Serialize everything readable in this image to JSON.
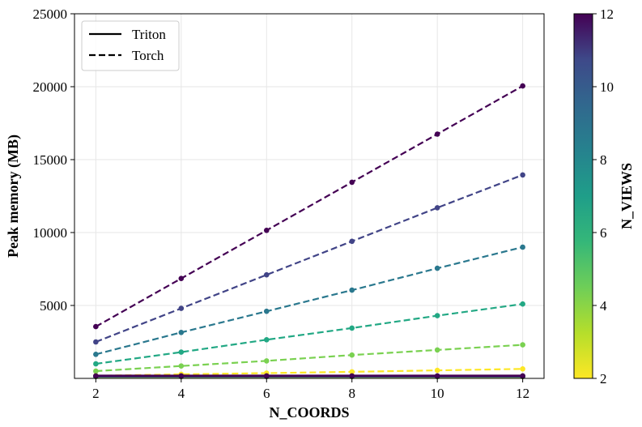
{
  "chart_data": {
    "type": "line",
    "title": "",
    "xlabel": "N_COORDS",
    "ylabel": "Peak memory (MB)",
    "x": [
      2,
      4,
      6,
      8,
      10,
      12
    ],
    "xlim": [
      1.5,
      12.5
    ],
    "ylim": [
      0,
      25000
    ],
    "xticks": [
      "2",
      "4",
      "6",
      "8",
      "10",
      "12"
    ],
    "yticks": [
      "5000",
      "10000",
      "15000",
      "20000",
      "25000"
    ],
    "grid": true,
    "legend": {
      "placement": "top-left",
      "entries": [
        {
          "label": "Triton",
          "style": "solid"
        },
        {
          "label": "Torch",
          "style": "dashed"
        }
      ]
    },
    "colorbar": {
      "label": "N_VIEWS",
      "range": [
        2,
        12
      ],
      "ticks": [
        "2",
        "4",
        "6",
        "8",
        "10",
        "12"
      ],
      "colormap": "viridis"
    },
    "series": [
      {
        "n_views": 12,
        "color": "#440154",
        "style": "dashed",
        "values": [
          3550,
          6850,
          10150,
          13450,
          16750,
          20050
        ]
      },
      {
        "n_views": 10,
        "color": "#414487",
        "style": "dashed",
        "values": [
          2500,
          4800,
          7100,
          9400,
          11700,
          13950
        ]
      },
      {
        "n_views": 8,
        "color": "#2a788e",
        "style": "dashed",
        "values": [
          1650,
          3150,
          4600,
          6050,
          7550,
          9000
        ]
      },
      {
        "n_views": 6,
        "color": "#22a884",
        "style": "dashed",
        "values": [
          1000,
          1800,
          2650,
          3450,
          4300,
          5100
        ]
      },
      {
        "n_views": 4,
        "color": "#7ad151",
        "style": "dashed",
        "values": [
          500,
          850,
          1200,
          1600,
          1950,
          2300
        ]
      },
      {
        "n_views": 2,
        "color": "#fde725",
        "style": "dashed",
        "values": [
          180,
          280,
          360,
          450,
          550,
          650
        ]
      },
      {
        "n_views": 2,
        "color": "#fde725",
        "style": "solid",
        "values": [
          120,
          120,
          120,
          120,
          120,
          120
        ]
      },
      {
        "n_views": 4,
        "color": "#7ad151",
        "style": "solid",
        "values": [
          130,
          130,
          130,
          130,
          130,
          130
        ]
      },
      {
        "n_views": 6,
        "color": "#22a884",
        "style": "solid",
        "values": [
          140,
          140,
          140,
          140,
          140,
          140
        ]
      },
      {
        "n_views": 8,
        "color": "#2a788e",
        "style": "solid",
        "values": [
          150,
          150,
          150,
          150,
          150,
          150
        ]
      },
      {
        "n_views": 10,
        "color": "#414487",
        "style": "solid",
        "values": [
          160,
          160,
          160,
          160,
          160,
          160
        ]
      },
      {
        "n_views": 12,
        "color": "#440154",
        "style": "solid",
        "values": [
          170,
          170,
          170,
          170,
          170,
          170
        ]
      }
    ]
  }
}
